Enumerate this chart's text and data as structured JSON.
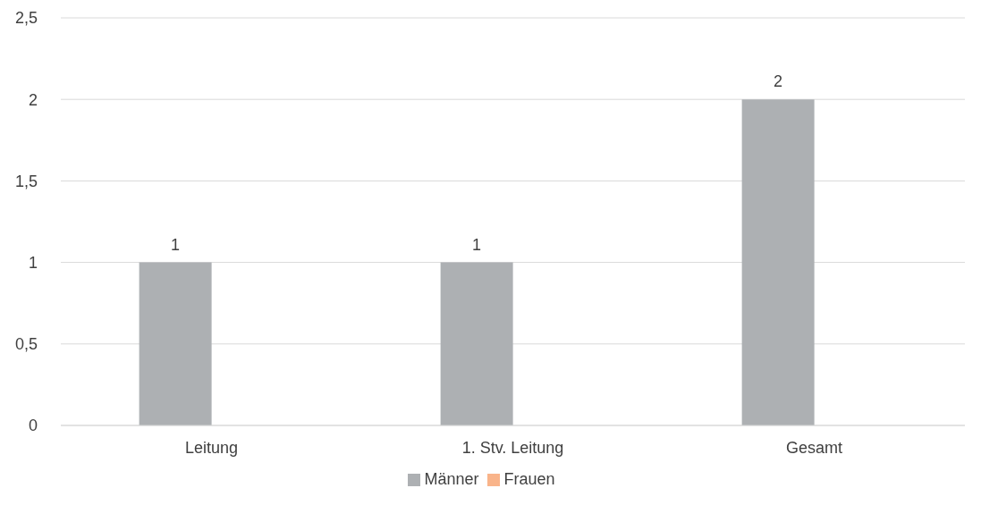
{
  "chart_data": {
    "type": "bar",
    "categories": [
      "Leitung",
      "1. Stv. Leitung",
      "Gesamt"
    ],
    "series": [
      {
        "name": "Männer",
        "color": "#adb0b3",
        "values": [
          1,
          1,
          2
        ],
        "value_labels": [
          "1",
          "1",
          "2"
        ]
      },
      {
        "name": "Frauen",
        "color": "#f9b48a",
        "values": [
          0,
          0,
          0
        ],
        "value_labels": [
          null,
          null,
          null
        ]
      }
    ],
    "ylim": [
      0,
      2.5
    ],
    "yticks": [
      {
        "value": 0,
        "label": "0"
      },
      {
        "value": 0.5,
        "label": "0,5"
      },
      {
        "value": 1,
        "label": "1"
      },
      {
        "value": 1.5,
        "label": "1,5"
      },
      {
        "value": 2,
        "label": "2"
      },
      {
        "value": 2.5,
        "label": "2,5"
      }
    ],
    "grid": "y",
    "legend": "bottom"
  }
}
